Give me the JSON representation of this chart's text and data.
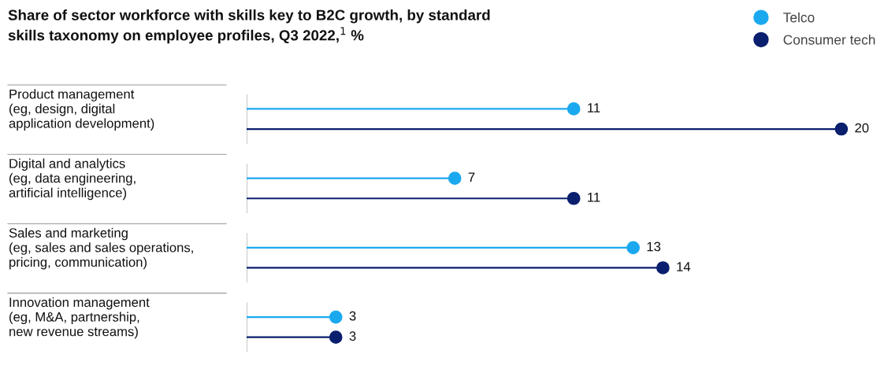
{
  "chart_data": {
    "type": "lollipop",
    "orientation": "horizontal",
    "title": "Share of sector workforce with skills key to B2C growth, by standard\nskills taxonomy on employee profiles, Q3 2022,$^{1}$ %",
    "categories": [
      "Product management\n(eg, design, digital\napplication development)",
      "Digital and analytics\n(eg, data engineering,\nartificial intelligence)",
      "Sales and marketing\n(eg, sales and sales operations,\npricing, communication)",
      "Innovation management\n(eg, M&A, partnership,\nnew revenue streams)"
    ],
    "series": [
      {
        "name": "Telco",
        "color": "#1aa9ef",
        "values": [
          11,
          7,
          13,
          3
        ]
      },
      {
        "name": "Consumer tech",
        "color": "#0a1f6e",
        "values": [
          20,
          11,
          14,
          3
        ]
      }
    ],
    "marker": "circle",
    "data_labels": true,
    "legend": "top right"
  }
}
